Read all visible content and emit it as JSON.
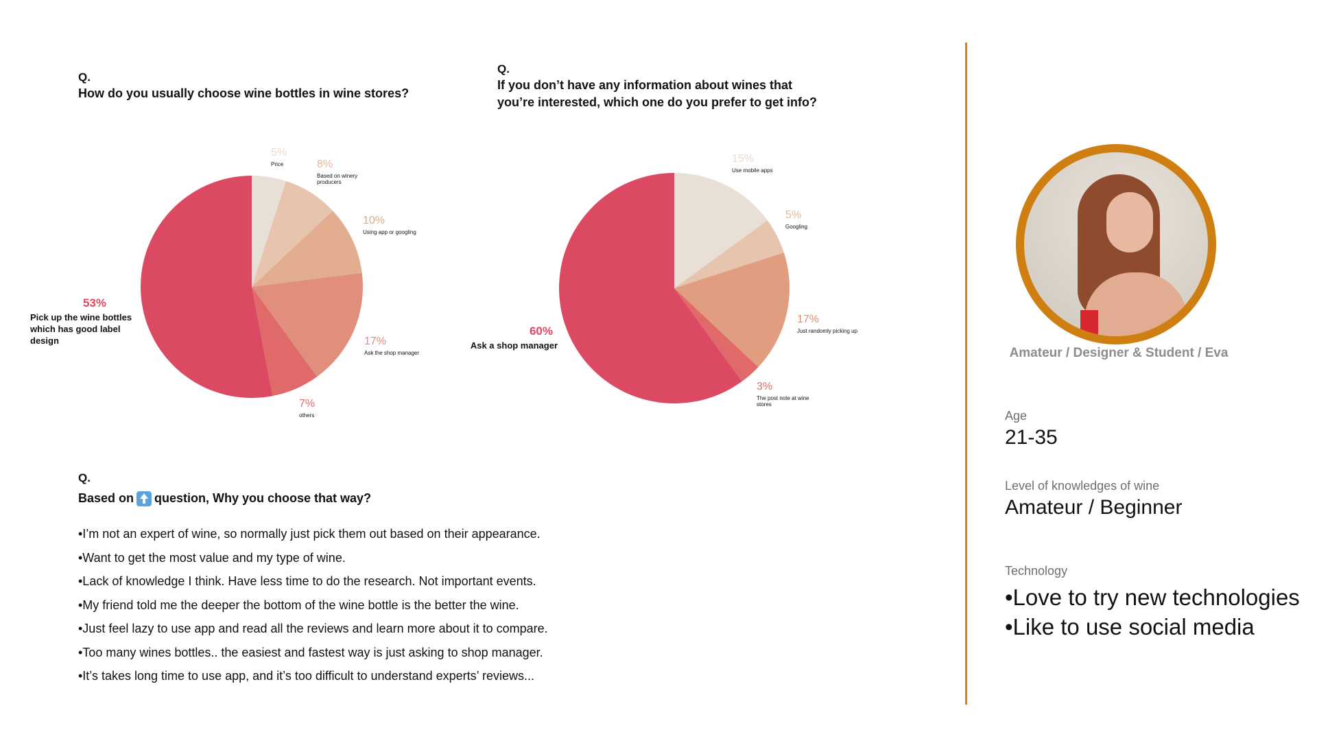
{
  "colors": {
    "divider": "#d6811f",
    "avatar_ring": "#cf7f11",
    "percent_labels": "#e8766e"
  },
  "questions": [
    {
      "label": "Q.",
      "text_lines": [
        "How do you usually choose wine bottles in wine stores?"
      ]
    },
    {
      "label": "Q.",
      "text_lines": [
        "If you don’t have any information about wines that",
        "you’re interested, which one do you prefer to get info?"
      ]
    },
    {
      "label": "Q.",
      "text_before_icon": "Based on",
      "icon": "up-arrow-emoji-icon",
      "text_after_icon": "question, Why you choose that way?",
      "answers": [
        "•I’m not an expert of wine, so normally just pick them out based on their appearance.",
        "•Want to get the most value and my type of wine.",
        "•Lack of knowledge I think. Have less time to do the research. Not important events.",
        "•My friend told me the deeper the bottom of the wine bottle is the better the wine.",
        "•Just feel lazy to use app and read all the reviews and learn more about it to compare.",
        "•Too many wines bottles.. the easiest and fastest way is just asking to shop manager.",
        "•It’s takes long time to use app, and it’s too difficult to understand experts’ reviews..."
      ]
    }
  ],
  "chart_data": [
    {
      "type": "pie",
      "title": "",
      "slices": [
        {
          "value": 5,
          "pct_label": "5%",
          "desc_lines": [
            "Price"
          ],
          "color": "#e8e0d6",
          "pct_color": "#ead9cf"
        },
        {
          "value": 8,
          "pct_label": "8%",
          "desc_lines": [
            "Based on winery",
            "producers"
          ],
          "color": "#e6c4ad",
          "pct_color": "#e7b79c"
        },
        {
          "value": 10,
          "pct_label": "10%",
          "desc_lines": [
            "Using app or googling"
          ],
          "color": "#e3ae8f",
          "pct_color": "#e6a582"
        },
        {
          "value": 17,
          "pct_label": "17%",
          "desc_lines": [
            "Ask the shop manager"
          ],
          "color": "#e18e7c",
          "pct_color": "#e58a78"
        },
        {
          "value": 7,
          "pct_label": "7%",
          "desc_lines": [
            "others"
          ],
          "color": "#e06a6a",
          "pct_color": "#e26c6a"
        },
        {
          "value": 53,
          "pct_label": "53%",
          "desc_lines": [
            "Pick up the wine bottles",
            "which has good label",
            "design"
          ],
          "color": "#db4a62",
          "pct_color": "#db4a62",
          "bold_desc": true
        }
      ]
    },
    {
      "type": "pie",
      "title": "",
      "slices": [
        {
          "value": 15,
          "pct_label": "15%",
          "desc_lines": [
            "Use mobile apps"
          ],
          "color": "#e8e0d6",
          "pct_color": "#ead9cf"
        },
        {
          "value": 5,
          "pct_label": "5%",
          "desc_lines": [
            "Googling"
          ],
          "color": "#e6c4ad",
          "pct_color": "#e7b79c"
        },
        {
          "value": 17,
          "pct_label": "17%",
          "desc_lines": [
            "Just randomly picking up"
          ],
          "color": "#e19d80",
          "pct_color": "#e58a78"
        },
        {
          "value": 3,
          "pct_label": "3%",
          "desc_lines": [
            "The post note at wine",
            "stores"
          ],
          "color": "#e06a6a",
          "pct_color": "#e26c6a"
        },
        {
          "value": 60,
          "pct_label": "60%",
          "desc_lines": [
            "Ask a shop manager"
          ],
          "color": "#db4a62",
          "pct_color": "#db4a62",
          "bold_desc": true
        }
      ]
    }
  ],
  "persona": {
    "caption": "Amateur / Designer & Student / Eva",
    "age_label": "Age",
    "age_value": "21-35",
    "knowledge_label": "Level of knowledges of wine",
    "knowledge_value": "Amateur / Beginner",
    "tech_label": "Technology",
    "tech_items": [
      "•Love to try new technologies",
      "•Like to use social media"
    ]
  }
}
